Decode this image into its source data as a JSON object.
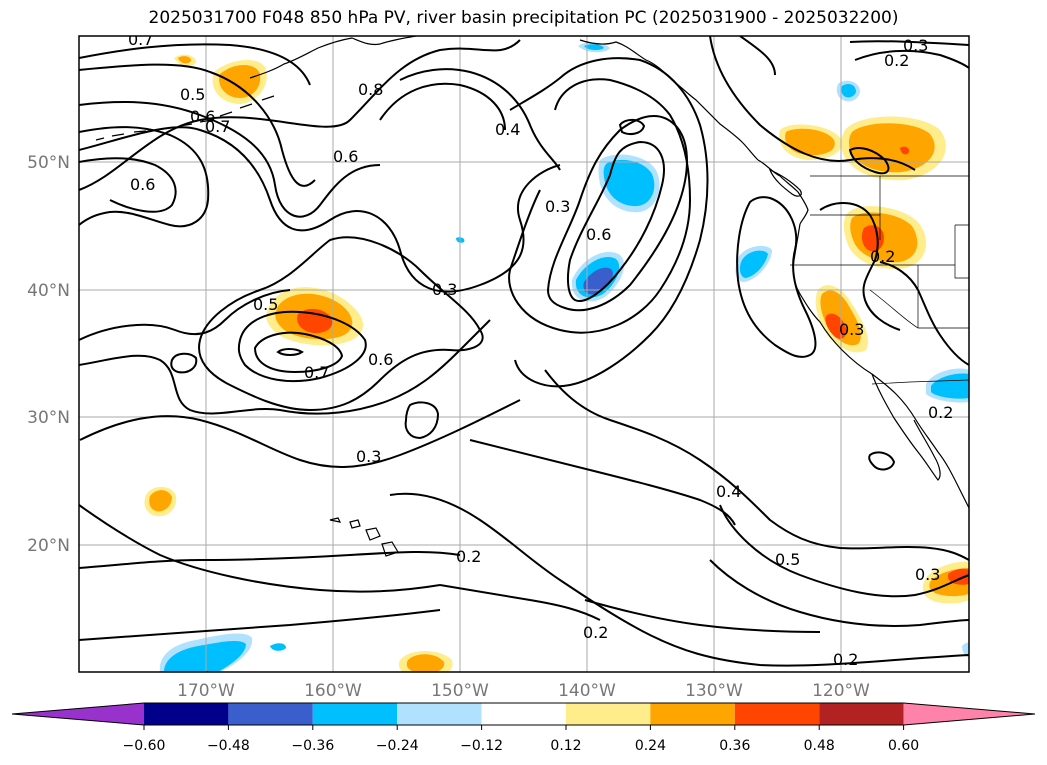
{
  "title": "2025031700 F048 850 hPa PV, river basin precipitation PC (2025031900 - 2025032200)",
  "lat_labels": [
    "50°N",
    "40°N",
    "30°N",
    "20°N"
  ],
  "lon_labels": [
    "170°W",
    "160°W",
    "150°W",
    "140°W",
    "130°W",
    "120°W"
  ],
  "contour_labels": [
    "0.7",
    "0.5",
    "0.6",
    "0.7",
    "0.8",
    "0.6",
    "0.6",
    "0.4",
    "0.3",
    "0.6",
    "0.3",
    "0.5",
    "0.7",
    "0.6",
    "0.3",
    "0.4",
    "0.2",
    "0.2",
    "0.5",
    "0.3",
    "0.2",
    "0.2",
    "0.3",
    "0.2",
    "0.2",
    "0.3"
  ],
  "colorbar": {
    "tick_labels": [
      "−0.60",
      "−0.48",
      "−0.36",
      "−0.24",
      "−0.12",
      "0.12",
      "0.24",
      "0.36",
      "0.48",
      "0.60"
    ],
    "colors": [
      "#9932CC",
      "#00008B",
      "#3A5FCD",
      "#00BFFF",
      "#B0E2FF",
      "#FFFFFF",
      "#FFEC8B",
      "#FFA500",
      "#FF4500",
      "#B22222",
      "#FF82AB"
    ]
  },
  "colors": {
    "grid": "#aaaaaa",
    "contour": "#000000",
    "tick_text": "#777777"
  }
}
